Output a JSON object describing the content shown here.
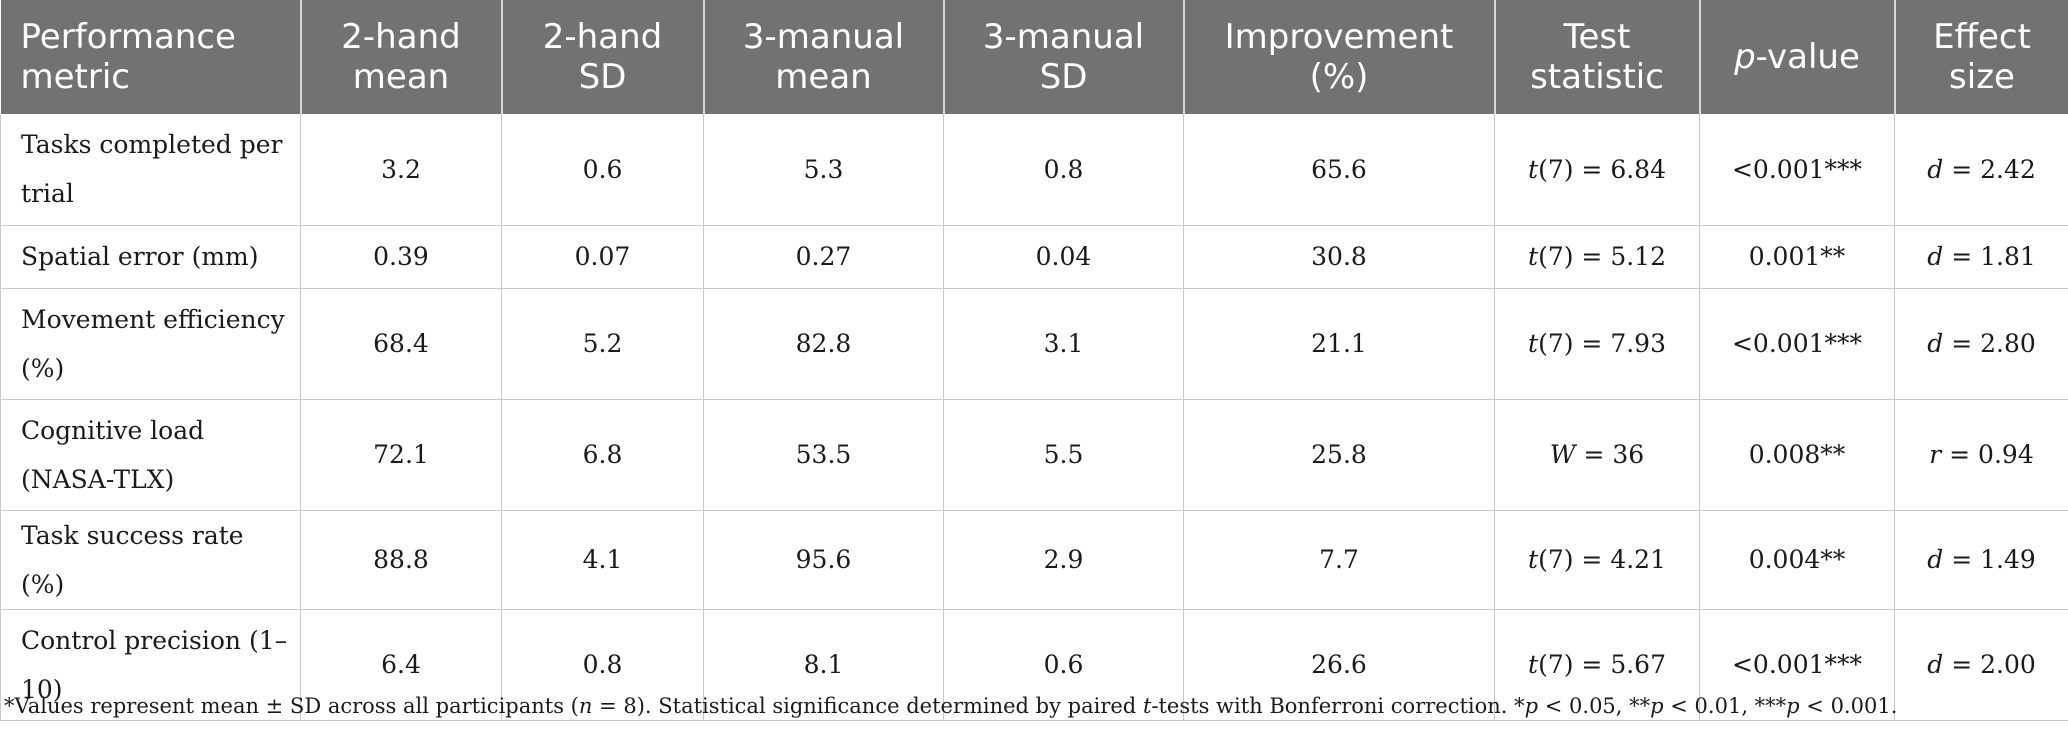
{
  "header": {
    "metric": "Performance metric",
    "hand2_mean": "2-hand mean",
    "hand2_sd": "2-hand SD",
    "manual3_mean": "3-manual mean",
    "manual3_sd": "3-manual SD",
    "improvement": "Improvement (%)",
    "test_statistic": "Test statistic",
    "p_value_p": "p",
    "p_value_rest": "-value",
    "effect_size": "Effect size"
  },
  "rows": [
    {
      "metric": "Tasks completed per trial",
      "hand2_mean": "3.2",
      "hand2_sd": "0.6",
      "manual3_mean": "5.3",
      "manual3_sd": "0.8",
      "improvement": "65.6",
      "stat_sym": "t",
      "stat_rest": "(7) = 6.84",
      "p_value": "<0.001***",
      "effect_sym": "d",
      "effect_rest": " = 2.42"
    },
    {
      "metric": "Spatial error (mm)",
      "hand2_mean": "0.39",
      "hand2_sd": "0.07",
      "manual3_mean": "0.27",
      "manual3_sd": "0.04",
      "improvement": "30.8",
      "stat_sym": "t",
      "stat_rest": "(7) = 5.12",
      "p_value": "0.001**",
      "effect_sym": "d",
      "effect_rest": " = 1.81"
    },
    {
      "metric": "Movement efficiency (%)",
      "hand2_mean": "68.4",
      "hand2_sd": "5.2",
      "manual3_mean": "82.8",
      "manual3_sd": "3.1",
      "improvement": "21.1",
      "stat_sym": "t",
      "stat_rest": "(7) = 7.93",
      "p_value": "<0.001***",
      "effect_sym": "d",
      "effect_rest": " = 2.80"
    },
    {
      "metric": "Cognitive load (NASA-TLX)",
      "hand2_mean": "72.1",
      "hand2_sd": "6.8",
      "manual3_mean": "53.5",
      "manual3_sd": "5.5",
      "improvement": "25.8",
      "stat_sym": "W",
      "stat_rest": " = 36",
      "p_value": "0.008**",
      "effect_sym": "r",
      "effect_rest": " = 0.94"
    },
    {
      "metric": "Task success rate (%)",
      "hand2_mean": "88.8",
      "hand2_sd": "4.1",
      "manual3_mean": "95.6",
      "manual3_sd": "2.9",
      "improvement": "7.7",
      "stat_sym": "t",
      "stat_rest": "(7) = 4.21",
      "p_value": "0.004**",
      "effect_sym": "d",
      "effect_rest": " = 1.49"
    },
    {
      "metric": "Control precision (1–10)",
      "hand2_mean": "6.4",
      "hand2_sd": "0.8",
      "manual3_mean": "8.1",
      "manual3_sd": "0.6",
      "improvement": "26.6",
      "stat_sym": "t",
      "stat_rest": "(7) = 5.67",
      "p_value": "<0.001***",
      "effect_sym": "d",
      "effect_rest": " = 2.00"
    }
  ],
  "footnote": {
    "part1": "*Values represent mean ± SD across all participants (",
    "n_sym": "n",
    "part2": " = 8). Statistical significance determined by paired ",
    "t_sym": "t",
    "part3": "-tests with Bonferroni correction. *",
    "p1": "p",
    "part4": " < 0.05, **",
    "p2": "p",
    "part5": " < 0.01, ***",
    "p3": "p",
    "part6": " < 0.001."
  }
}
